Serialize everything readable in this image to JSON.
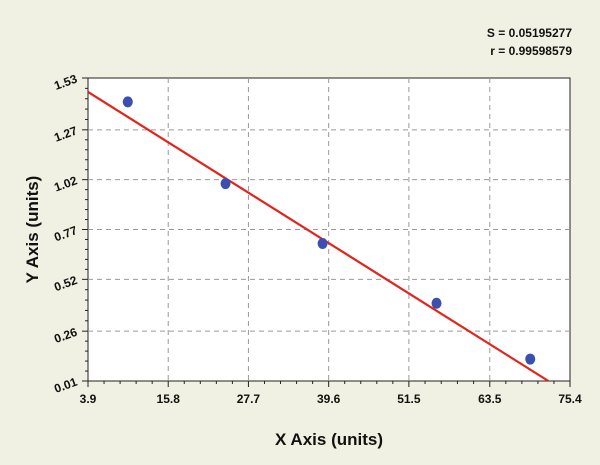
{
  "stats": {
    "s_text": "S = 0.05195277",
    "r_text": "r = 0.99598579"
  },
  "chart_data": {
    "type": "scatter",
    "xlabel": "X Axis (units)",
    "ylabel": "Y Axis (units)",
    "xlim": [
      3.9,
      75.4
    ],
    "ylim": [
      0.01,
      1.53
    ],
    "xticks": [
      "3.9",
      "15.8",
      "27.7",
      "39.6",
      "51.5",
      "63.5",
      "75.4"
    ],
    "yticks": [
      "0.01",
      "0.26",
      "0.52",
      "0.77",
      "1.02",
      "1.27",
      "1.53"
    ],
    "grid": true,
    "series": [
      {
        "kind": "points",
        "x": [
          9.8,
          24.3,
          38.7,
          55.6,
          69.5
        ],
        "y": [
          1.41,
          1.0,
          0.7,
          0.4,
          0.12
        ],
        "color": "#3b4fb0"
      },
      {
        "kind": "fit-line",
        "x": [
          3.9,
          72.2
        ],
        "y": [
          1.46,
          0.01
        ],
        "color": "#e3241b"
      }
    ]
  }
}
